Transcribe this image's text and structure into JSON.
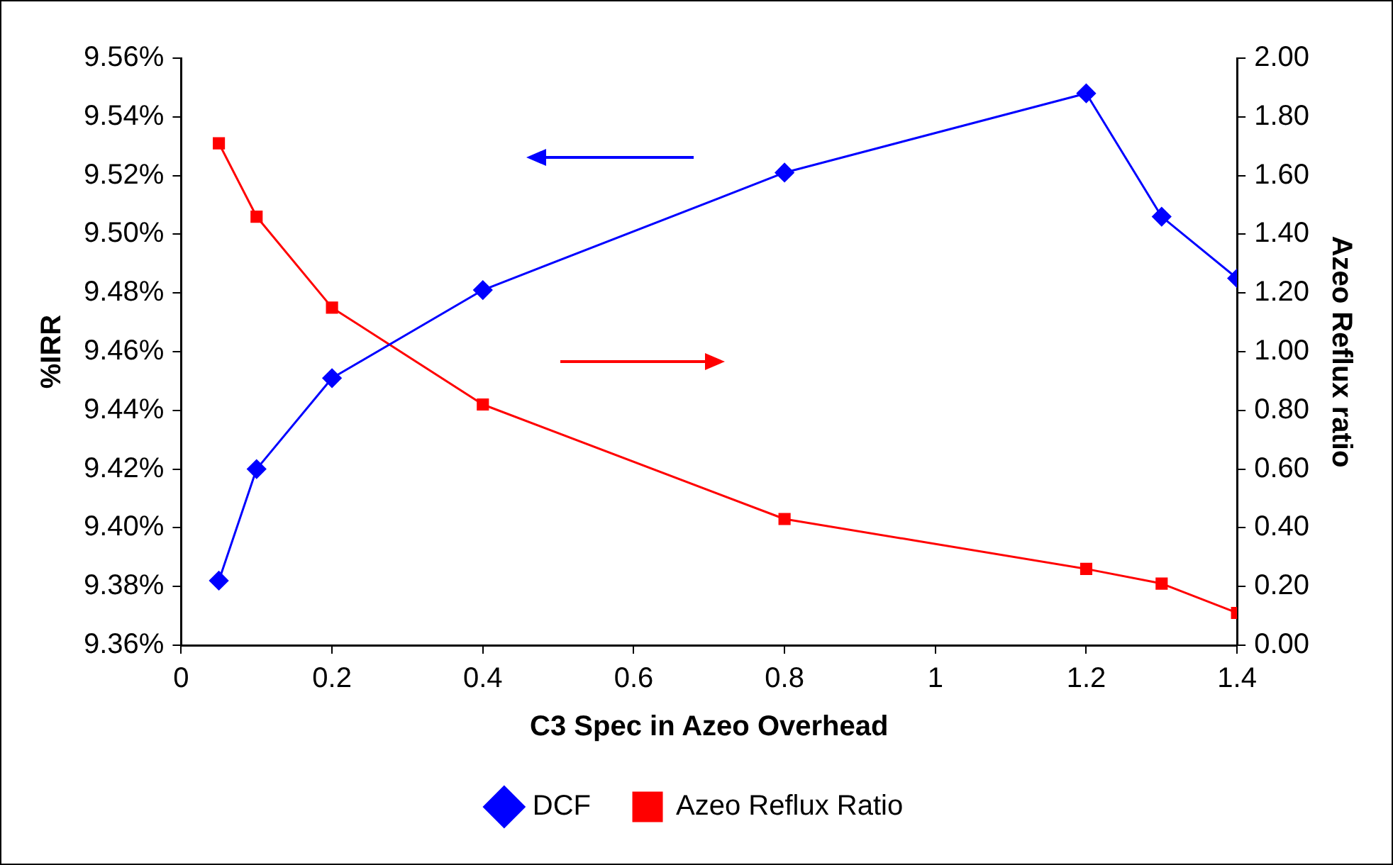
{
  "chart_data": {
    "type": "line",
    "xlabel": "C3 Spec in Azeo Overhead",
    "ylabel": "%IRR",
    "y2label": "Azeo Reflux ratio",
    "x": [
      0.05,
      0.1,
      0.2,
      0.4,
      0.8,
      1.2,
      1.3,
      1.4
    ],
    "series": [
      {
        "name": "DCF",
        "color": "#0000ff",
        "marker": "diamond",
        "values": [
          9.382,
          9.42,
          9.451,
          9.481,
          9.521,
          9.548,
          9.506,
          9.485
        ]
      },
      {
        "name": "Azeo Reflux Ratio",
        "color": "#ff0000",
        "marker": "square",
        "axis": "y2",
        "values": [
          1.71,
          1.46,
          1.15,
          0.82,
          0.43,
          0.26,
          0.21,
          0.11
        ]
      }
    ],
    "xlim": [
      0,
      1.4
    ],
    "xticks": [
      0,
      0.2,
      0.4,
      0.6,
      0.8,
      1,
      1.2,
      1.4
    ],
    "ylim": [
      9.36,
      9.56
    ],
    "yticks": [
      {
        "value": 9.36,
        "label": "9.36%"
      },
      {
        "value": 9.38,
        "label": "9.38%"
      },
      {
        "value": 9.4,
        "label": "9.40%"
      },
      {
        "value": 9.42,
        "label": "9.42%"
      },
      {
        "value": 9.44,
        "label": "9.44%"
      },
      {
        "value": 9.46,
        "label": "9.46%"
      },
      {
        "value": 9.48,
        "label": "9.48%"
      },
      {
        "value": 9.5,
        "label": "9.50%"
      },
      {
        "value": 9.52,
        "label": "9.52%"
      },
      {
        "value": 9.54,
        "label": "9.54%"
      },
      {
        "value": 9.56,
        "label": "9.56%"
      }
    ],
    "y2lim": [
      0,
      2
    ],
    "y2ticks": [
      {
        "value": 0,
        "label": "0.00"
      },
      {
        "value": 0.2,
        "label": "0.20"
      },
      {
        "value": 0.4,
        "label": "0.40"
      },
      {
        "value": 0.6,
        "label": "0.60"
      },
      {
        "value": 0.8,
        "label": "0.80"
      },
      {
        "value": 1,
        "label": "1.00"
      },
      {
        "value": 1.2,
        "label": "1.20"
      },
      {
        "value": 1.4,
        "label": "1.40"
      },
      {
        "value": 1.6,
        "label": "1.60"
      },
      {
        "value": 1.8,
        "label": "1.80"
      },
      {
        "value": 2,
        "label": "2.00"
      }
    ],
    "grid": false,
    "legend": "bottom",
    "line_style": "solid"
  }
}
